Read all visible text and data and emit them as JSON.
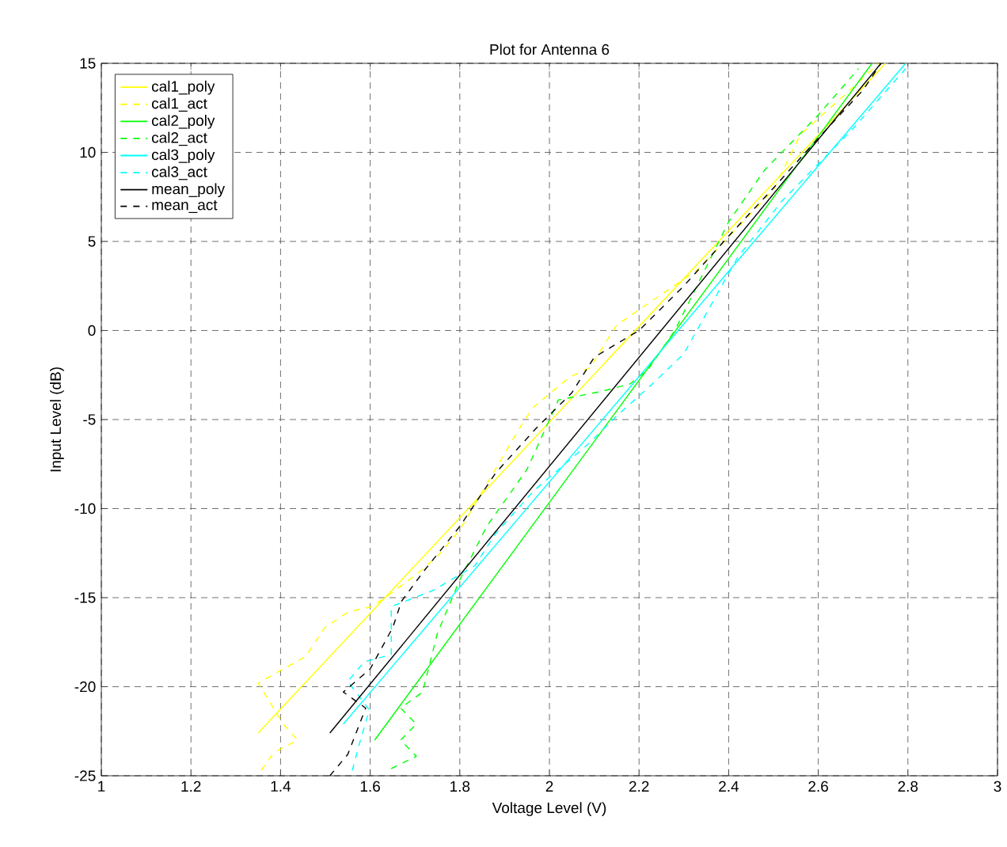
{
  "chart_data": {
    "type": "line",
    "title": "Plot for Antenna 6",
    "xlabel": "Voltage Level (V)",
    "ylabel": "Input Level (dB)",
    "xlim": [
      1,
      3
    ],
    "ylim": [
      -25,
      15
    ],
    "xticks": [
      1,
      1.2,
      1.4,
      1.6,
      1.8,
      2,
      2.2,
      2.4,
      2.6,
      2.8,
      3
    ],
    "yticks": [
      -25,
      -20,
      -15,
      -10,
      -5,
      0,
      5,
      10,
      15
    ],
    "grid": true,
    "legend": "top left",
    "series": [
      {
        "name": "cal1_poly",
        "color": "#ffff00",
        "line_style": "solid",
        "x": [
          1.35,
          2.75
        ],
        "values": [
          -22.6,
          15
        ]
      },
      {
        "name": "cal1_act",
        "color": "#ffff00",
        "line_style": "dashed",
        "x": [
          1.357,
          1.385,
          1.438,
          1.406,
          1.35,
          1.456,
          1.498,
          1.551,
          1.604,
          1.633,
          1.703,
          1.753,
          1.8,
          1.94,
          1.965,
          2.046,
          2.09,
          2.15,
          2.33,
          2.5,
          2.56,
          2.68,
          2.735
        ],
        "values": [
          -24.7,
          -23.7,
          -23.0,
          -22.1,
          -19.8,
          -18.3,
          -16.7,
          -15.8,
          -15.5,
          -15.0,
          -13.7,
          -12.6,
          -11.2,
          -5.2,
          -4.3,
          -2.6,
          -2.1,
          0.3,
          3.4,
          7.9,
          11,
          13.7,
          15
        ]
      },
      {
        "name": "cal2_poly",
        "color": "#00ff00",
        "line_style": "solid",
        "x": [
          1.61,
          2.72
        ],
        "values": [
          -23,
          15
        ]
      },
      {
        "name": "cal2_act",
        "color": "#00ff00",
        "line_style": "dashed",
        "x": [
          1.647,
          1.703,
          1.668,
          1.703,
          1.668,
          1.717,
          1.75,
          1.8,
          1.86,
          1.95,
          2.02,
          2.12,
          2.18,
          2.22,
          2.28,
          2.4,
          2.48,
          2.6,
          2.69
        ],
        "values": [
          -24.6,
          -23.9,
          -23.0,
          -22.1,
          -21.2,
          -20.3,
          -17,
          -14,
          -11,
          -7.8,
          -3.9,
          -3.4,
          -3.0,
          -2.2,
          0,
          6.1,
          9,
          12.1,
          14.7
        ]
      },
      {
        "name": "cal3_poly",
        "color": "#00ffff",
        "line_style": "solid",
        "x": [
          1.54,
          2.795
        ],
        "values": [
          -22.1,
          15
        ]
      },
      {
        "name": "cal3_act",
        "color": "#00ffff",
        "line_style": "dashed",
        "x": [
          1.56,
          1.576,
          1.598,
          1.55,
          1.587,
          1.647,
          1.647,
          1.74,
          1.834,
          1.88,
          1.965,
          2.09,
          2.15,
          2.23,
          2.3,
          2.42,
          2.52,
          2.68,
          2.795
        ],
        "values": [
          -24.7,
          -23.2,
          -21.3,
          -19.7,
          -18.6,
          -18.2,
          -15.5,
          -14.6,
          -13.2,
          -11.4,
          -9.0,
          -6.3,
          -4.8,
          -3.0,
          -1.3,
          4.1,
          7.3,
          11.4,
          14.7
        ]
      },
      {
        "name": "mean_poly",
        "color": "#000000",
        "line_style": "solid",
        "x": [
          1.51,
          2.74
        ],
        "values": [
          -22.6,
          15
        ]
      },
      {
        "name": "mean_act",
        "color": "#000000",
        "line_style": "dashed",
        "x": [
          1.51,
          1.55,
          1.59,
          1.54,
          1.6,
          1.65,
          1.67,
          1.72,
          1.8,
          1.88,
          1.97,
          2.05,
          2.1,
          2.2,
          2.3,
          2.4,
          2.5,
          2.6,
          2.7,
          2.74
        ],
        "values": [
          -25,
          -23.8,
          -21.2,
          -20.3,
          -19.0,
          -16.7,
          -15.2,
          -13.5,
          -11,
          -8,
          -5.5,
          -3.5,
          -1.5,
          0,
          2.5,
          5.3,
          8,
          10.8,
          13.5,
          15
        ]
      }
    ]
  }
}
